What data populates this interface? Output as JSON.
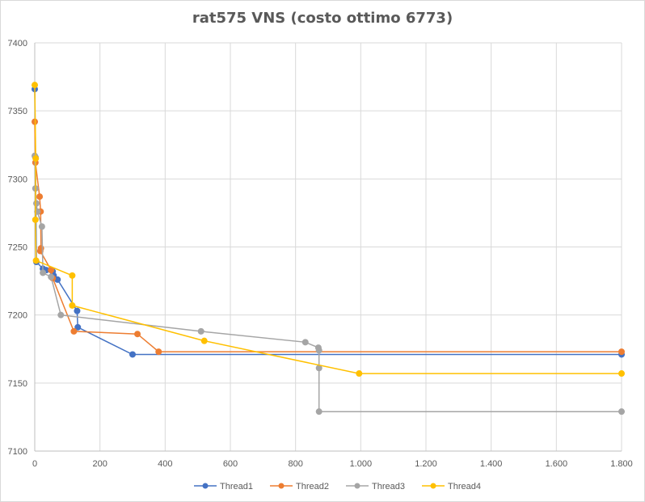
{
  "chart_data": {
    "type": "line",
    "title": "rat575 VNS (costo ottimo 6773)",
    "xlabel": "",
    "ylabel": "",
    "xlim": [
      0,
      1800
    ],
    "ylim": [
      7100,
      7400
    ],
    "xticks": [
      0,
      200,
      400,
      600,
      800,
      1000,
      1200,
      1400,
      1600,
      1800
    ],
    "xtick_labels": [
      "0",
      "200",
      "400",
      "600",
      "800",
      "1.000",
      "1.200",
      "1.400",
      "1.600",
      "1.800"
    ],
    "yticks": [
      7100,
      7150,
      7200,
      7250,
      7300,
      7350,
      7400
    ],
    "ytick_labels": [
      "7100",
      "7150",
      "7200",
      "7250",
      "7300",
      "7350",
      "7400"
    ],
    "grid": true,
    "legend_position": "bottom",
    "series": [
      {
        "name": "Thread1",
        "color": "#4472C4",
        "points": [
          [
            0,
            7366
          ],
          [
            2,
            7316
          ],
          [
            5,
            7239
          ],
          [
            25,
            7234
          ],
          [
            35,
            7233
          ],
          [
            55,
            7232
          ],
          [
            58,
            7229
          ],
          [
            70,
            7226
          ],
          [
            130,
            7203
          ],
          [
            132,
            7191
          ],
          [
            300,
            7171
          ],
          [
            1800,
            7171
          ]
        ]
      },
      {
        "name": "Thread2",
        "color": "#ED7D31",
        "points": [
          [
            0,
            7342
          ],
          [
            2,
            7312
          ],
          [
            15,
            7287
          ],
          [
            18,
            7276
          ],
          [
            19,
            7249
          ],
          [
            17,
            7247
          ],
          [
            50,
            7233
          ],
          [
            55,
            7227
          ],
          [
            120,
            7188
          ],
          [
            315,
            7186
          ],
          [
            380,
            7173
          ],
          [
            1800,
            7173
          ]
        ]
      },
      {
        "name": "Thread3",
        "color": "#A5A5A5",
        "points": [
          [
            0,
            7317
          ],
          [
            2,
            7293
          ],
          [
            5,
            7282
          ],
          [
            8,
            7276
          ],
          [
            22,
            7265
          ],
          [
            25,
            7231
          ],
          [
            50,
            7228
          ],
          [
            80,
            7200
          ],
          [
            510,
            7188
          ],
          [
            830,
            7180
          ],
          [
            870,
            7176
          ],
          [
            872,
            7174
          ],
          [
            872,
            7161
          ],
          [
            872,
            7129
          ],
          [
            1800,
            7129
          ]
        ]
      },
      {
        "name": "Thread4",
        "color": "#FFC000",
        "points": [
          [
            0,
            7369
          ],
          [
            3,
            7315
          ],
          [
            2,
            7270
          ],
          [
            4,
            7240
          ],
          [
            115,
            7229
          ],
          [
            115,
            7207
          ],
          [
            520,
            7181
          ],
          [
            995,
            7157
          ],
          [
            1800,
            7157
          ]
        ]
      }
    ]
  }
}
